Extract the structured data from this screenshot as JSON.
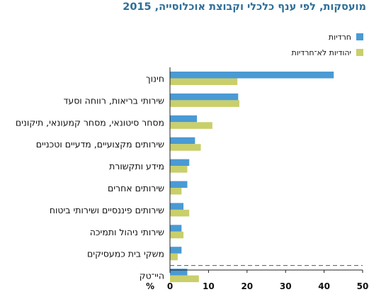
{
  "chart_data": {
    "type": "bar",
    "orientation": "horizontal",
    "title": "מועסקות, לפי ענף כלכלי וקבוצת אוכלוסייה, 2015",
    "unit_label": "%",
    "xlim": [
      0,
      50
    ],
    "xticks": [
      0,
      10,
      20,
      30,
      40,
      50
    ],
    "grid": false,
    "legend_position": "top-right",
    "categories": [
      "חינוך",
      "שירותי בריאות, רווחה וסעד",
      "מסחר סיטונאי, מסחר קמעונאי, תיקונים",
      "שירותים מקצועיים, מדעיים וטכניים",
      "מידע ותקשורת",
      "שירותים אחרים",
      "שירותים פיננסיים ושירותי ביטוח",
      "שירותי ניהול ותמיכה",
      "משקי בית כמעסיקים",
      "היי־טק"
    ],
    "series": [
      {
        "name": "חרדיות",
        "color": "#4a9ad4",
        "values": [
          42.5,
          17.7,
          7.0,
          6.5,
          5.0,
          4.5,
          3.5,
          3.0,
          3.0,
          4.5
        ]
      },
      {
        "name": "יהודיות לא־חרדיות",
        "color": "#c9cf6a",
        "values": [
          17.5,
          18.0,
          11.0,
          8.0,
          4.5,
          3.0,
          5.0,
          3.5,
          2.0,
          7.5
        ]
      }
    ],
    "separator_before_last": true
  }
}
